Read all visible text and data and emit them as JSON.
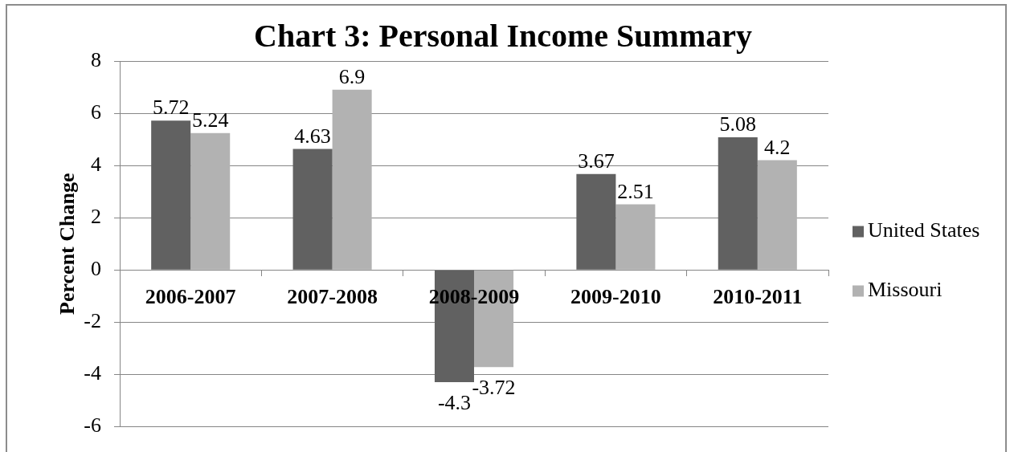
{
  "chart_data": {
    "type": "bar",
    "title": "Chart 3: Personal Income Summary",
    "ylabel": "Percent Change",
    "categories": [
      "2006-2007",
      "2007-2008",
      "2008-2009",
      "2009-2010",
      "2010-2011"
    ],
    "series": [
      {
        "name": "United States",
        "color": "#616161",
        "values": [
          5.72,
          4.63,
          -4.3,
          3.67,
          5.08
        ]
      },
      {
        "name": "Missouri",
        "color": "#b2b2b2",
        "values": [
          5.24,
          6.9,
          -3.72,
          2.51,
          4.2
        ]
      }
    ],
    "ylim": [
      -6,
      8
    ],
    "yticks": [
      -6,
      -4,
      -2,
      0,
      2,
      4,
      6,
      8
    ],
    "grid": "y",
    "legend": "right",
    "data_labels": true
  }
}
